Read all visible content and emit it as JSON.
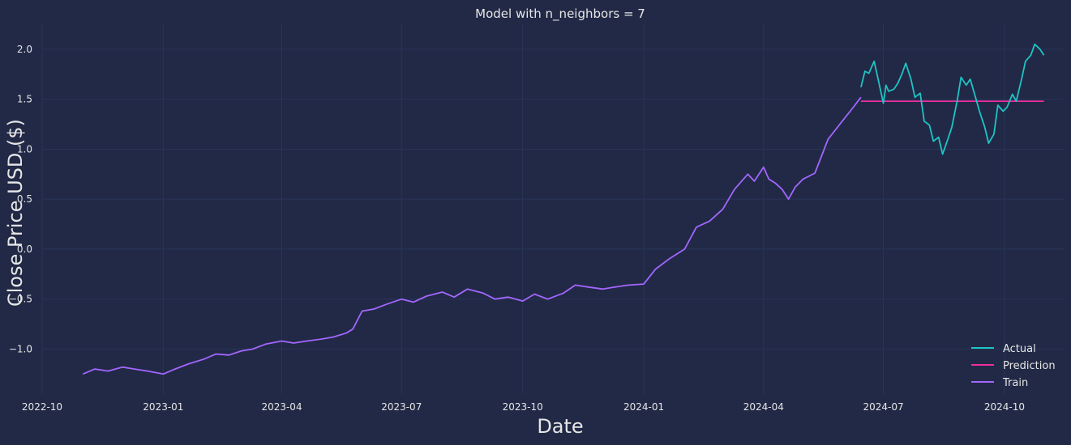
{
  "chart_data": {
    "type": "line",
    "title": "Model with n_neighbors = 7",
    "xlabel": "Date",
    "ylabel": "Close Price USD ($)",
    "grid": true,
    "legend_position": "bottom-right",
    "xlim": [
      "2022-10-01",
      "2024-11-15"
    ],
    "ylim": [
      -1.45,
      2.25
    ],
    "x_ticks": [
      "2022-10",
      "2023-01",
      "2023-04",
      "2023-07",
      "2023-10",
      "2024-01",
      "2024-04",
      "2024-07",
      "2024-10"
    ],
    "y_ticks": [
      -1.0,
      -0.5,
      0.0,
      0.5,
      1.0,
      1.5,
      2.0
    ],
    "y_tick_labels": [
      "−1.0",
      "−0.5",
      "0.0",
      "0.5",
      "1.0",
      "1.5",
      "2.0"
    ],
    "colors": {
      "background": "#212946",
      "grid": "#2A3459",
      "text": "#e6e6e6"
    },
    "series": [
      {
        "name": "Actual",
        "color": "#1ec4c4",
        "x": [
          "2024-06-14",
          "2024-06-17",
          "2024-06-20",
          "2024-06-24",
          "2024-06-27",
          "2024-07-01",
          "2024-07-03",
          "2024-07-05",
          "2024-07-09",
          "2024-07-12",
          "2024-07-15",
          "2024-07-18",
          "2024-07-22",
          "2024-07-25",
          "2024-07-29",
          "2024-08-01",
          "2024-08-05",
          "2024-08-08",
          "2024-08-12",
          "2024-08-15",
          "2024-08-19",
          "2024-08-22",
          "2024-08-26",
          "2024-08-29",
          "2024-09-02",
          "2024-09-05",
          "2024-09-09",
          "2024-09-12",
          "2024-09-16",
          "2024-09-19",
          "2024-09-23",
          "2024-09-26",
          "2024-09-30",
          "2024-10-03",
          "2024-10-07",
          "2024-10-10",
          "2024-10-14",
          "2024-10-17",
          "2024-10-21",
          "2024-10-24",
          "2024-10-28",
          "2024-10-31"
        ],
        "y": [
          1.62,
          1.78,
          1.76,
          1.88,
          1.7,
          1.46,
          1.64,
          1.58,
          1.6,
          1.66,
          1.75,
          1.86,
          1.7,
          1.52,
          1.56,
          1.28,
          1.24,
          1.08,
          1.12,
          0.95,
          1.1,
          1.22,
          1.48,
          1.72,
          1.64,
          1.7,
          1.52,
          1.38,
          1.22,
          1.06,
          1.15,
          1.44,
          1.38,
          1.42,
          1.55,
          1.48,
          1.7,
          1.88,
          1.94,
          2.05,
          2.0,
          1.94
        ]
      },
      {
        "name": "Prediction",
        "color": "#f02ea0",
        "x": [
          "2024-06-14",
          "2024-10-31"
        ],
        "y": [
          1.48,
          1.48
        ]
      },
      {
        "name": "Train",
        "color": "#a366ff",
        "x": [
          "2022-11-01",
          "2022-11-10",
          "2022-11-20",
          "2022-12-01",
          "2022-12-10",
          "2022-12-20",
          "2023-01-01",
          "2023-01-10",
          "2023-01-20",
          "2023-02-01",
          "2023-02-10",
          "2023-02-20",
          "2023-03-01",
          "2023-03-10",
          "2023-03-20",
          "2023-04-01",
          "2023-04-10",
          "2023-04-20",
          "2023-05-01",
          "2023-05-10",
          "2023-05-20",
          "2023-05-25",
          "2023-06-01",
          "2023-06-10",
          "2023-06-20",
          "2023-07-01",
          "2023-07-10",
          "2023-07-20",
          "2023-08-01",
          "2023-08-10",
          "2023-08-20",
          "2023-09-01",
          "2023-09-10",
          "2023-09-20",
          "2023-10-01",
          "2023-10-10",
          "2023-10-20",
          "2023-11-01",
          "2023-11-10",
          "2023-11-20",
          "2023-12-01",
          "2023-12-10",
          "2023-12-20",
          "2024-01-01",
          "2024-01-10",
          "2024-01-20",
          "2024-02-01",
          "2024-02-10",
          "2024-02-20",
          "2024-03-01",
          "2024-03-10",
          "2024-03-20",
          "2024-03-25",
          "2024-04-01",
          "2024-04-05",
          "2024-04-10",
          "2024-04-15",
          "2024-04-20",
          "2024-04-25",
          "2024-05-01",
          "2024-05-10",
          "2024-05-20",
          "2024-06-01",
          "2024-06-07",
          "2024-06-14"
        ],
        "y": [
          -1.25,
          -1.2,
          -1.22,
          -1.18,
          -1.2,
          -1.22,
          -1.25,
          -1.2,
          -1.15,
          -1.1,
          -1.05,
          -1.06,
          -1.02,
          -1.0,
          -0.95,
          -0.92,
          -0.94,
          -0.92,
          -0.9,
          -0.88,
          -0.84,
          -0.8,
          -0.62,
          -0.6,
          -0.55,
          -0.5,
          -0.53,
          -0.47,
          -0.43,
          -0.48,
          -0.4,
          -0.44,
          -0.5,
          -0.48,
          -0.52,
          -0.45,
          -0.5,
          -0.44,
          -0.36,
          -0.38,
          -0.4,
          -0.38,
          -0.36,
          -0.35,
          -0.2,
          -0.1,
          0.0,
          0.22,
          0.28,
          0.4,
          0.6,
          0.75,
          0.68,
          0.82,
          0.7,
          0.66,
          0.6,
          0.5,
          0.62,
          0.7,
          0.76,
          1.1,
          1.3,
          1.4,
          1.52
        ]
      }
    ]
  }
}
